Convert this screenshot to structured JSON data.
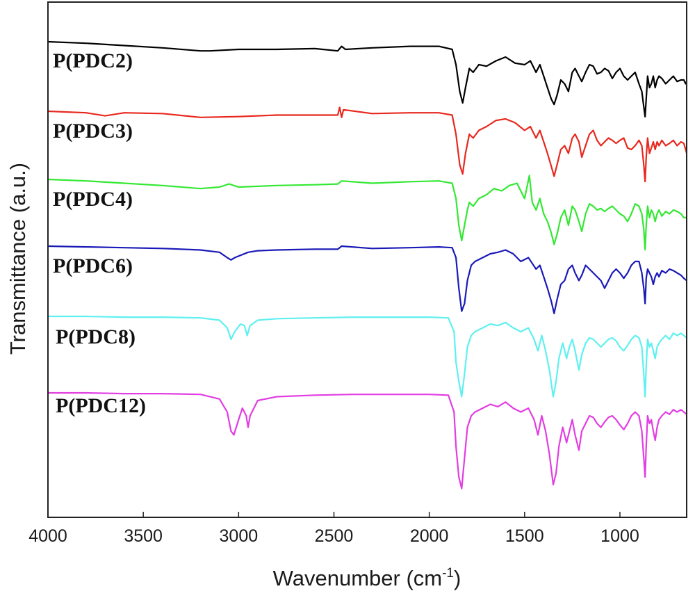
{
  "chart_data": {
    "type": "line",
    "title": "",
    "xlabel": "Wavenumber (cm",
    "xlabel_sup": "-1",
    "xlabel_end": ")",
    "ylabel": "Transmittance (a.u.)",
    "xlim": [
      4000,
      650
    ],
    "x_reversed": true,
    "x_ticks": [
      4000,
      3500,
      3000,
      2500,
      2000,
      1500,
      1000
    ],
    "grid": false,
    "series": [
      {
        "name": "P(PDC2)",
        "color": "#000000",
        "baseline": 0,
        "x": [
          4000,
          3800,
          3600,
          3400,
          3200,
          3150,
          3000,
          2800,
          2600,
          2480,
          2460,
          2440,
          2300,
          2100,
          1950,
          1880,
          1860,
          1840,
          1825,
          1810,
          1790,
          1770,
          1740,
          1700,
          1650,
          1600,
          1550,
          1500,
          1470,
          1440,
          1420,
          1400,
          1380,
          1360,
          1345,
          1330,
          1310,
          1290,
          1270,
          1250,
          1235,
          1215,
          1200,
          1180,
          1160,
          1140,
          1120,
          1100,
          1080,
          1060,
          1040,
          1020,
          1000,
          980,
          960,
          940,
          920,
          900,
          885,
          875,
          868,
          862,
          855,
          845,
          835,
          825,
          815,
          805,
          795,
          780,
          760,
          740,
          720,
          700,
          680,
          665,
          655,
          650
        ],
        "y": [
          0.0,
          -0.02,
          -0.05,
          -0.08,
          -0.12,
          -0.12,
          -0.1,
          -0.1,
          -0.09,
          -0.12,
          -0.06,
          -0.1,
          -0.08,
          -0.06,
          -0.06,
          -0.1,
          -0.3,
          -0.65,
          -0.8,
          -0.6,
          -0.35,
          -0.4,
          -0.3,
          -0.32,
          -0.25,
          -0.2,
          -0.28,
          -0.3,
          -0.25,
          -0.4,
          -0.3,
          -0.45,
          -0.6,
          -0.75,
          -0.82,
          -0.7,
          -0.5,
          -0.55,
          -0.65,
          -0.4,
          -0.35,
          -0.45,
          -0.52,
          -0.4,
          -0.3,
          -0.32,
          -0.42,
          -0.4,
          -0.35,
          -0.38,
          -0.48,
          -0.4,
          -0.35,
          -0.45,
          -0.5,
          -0.45,
          -0.4,
          -0.55,
          -0.65,
          -0.85,
          -0.98,
          -0.75,
          -0.45,
          -0.6,
          -0.55,
          -0.45,
          -0.6,
          -0.5,
          -0.45,
          -0.48,
          -0.55,
          -0.5,
          -0.45,
          -0.52,
          -0.5,
          -0.5,
          -0.55,
          -0.52
        ]
      },
      {
        "name": "P(PDC3)",
        "color": "#e8281e",
        "baseline": 0,
        "x": [
          4000,
          3800,
          3700,
          3600,
          3400,
          3200,
          3000,
          2800,
          2600,
          2480,
          2470,
          2460,
          2450,
          2300,
          2100,
          1950,
          1880,
          1860,
          1840,
          1825,
          1810,
          1790,
          1770,
          1740,
          1700,
          1650,
          1600,
          1550,
          1500,
          1470,
          1440,
          1420,
          1400,
          1380,
          1360,
          1345,
          1330,
          1310,
          1290,
          1270,
          1250,
          1235,
          1215,
          1200,
          1180,
          1160,
          1140,
          1120,
          1100,
          1080,
          1060,
          1040,
          1020,
          1000,
          980,
          960,
          940,
          920,
          900,
          885,
          875,
          868,
          862,
          855,
          845,
          835,
          825,
          815,
          805,
          795,
          780,
          760,
          740,
          720,
          700,
          680,
          665,
          655,
          650
        ],
        "y": [
          0.0,
          -0.02,
          -0.06,
          -0.02,
          -0.03,
          -0.08,
          -0.07,
          -0.05,
          -0.05,
          -0.05,
          0.05,
          -0.08,
          0.02,
          -0.03,
          -0.02,
          -0.02,
          -0.05,
          -0.3,
          -0.7,
          -0.82,
          -0.55,
          -0.3,
          -0.35,
          -0.25,
          -0.2,
          -0.12,
          -0.1,
          -0.15,
          -0.25,
          -0.2,
          -0.35,
          -0.25,
          -0.4,
          -0.55,
          -0.72,
          -0.85,
          -0.7,
          -0.5,
          -0.45,
          -0.55,
          -0.35,
          -0.3,
          -0.4,
          -0.6,
          -0.45,
          -0.3,
          -0.25,
          -0.38,
          -0.45,
          -0.4,
          -0.35,
          -0.38,
          -0.42,
          -0.38,
          -0.35,
          -0.48,
          -0.5,
          -0.45,
          -0.38,
          -0.45,
          -0.7,
          -0.92,
          -0.6,
          -0.35,
          -0.55,
          -0.48,
          -0.4,
          -0.5,
          -0.4,
          -0.45,
          -0.38,
          -0.45,
          -0.42,
          -0.38,
          -0.45,
          -0.4,
          -0.42,
          -0.5,
          -0.55
        ]
      },
      {
        "name": "P(PDC4)",
        "color": "#33e833",
        "baseline": 0,
        "x": [
          4000,
          3800,
          3600,
          3400,
          3200,
          3100,
          3050,
          3000,
          2800,
          2600,
          2480,
          2460,
          2300,
          2100,
          1950,
          1880,
          1860,
          1845,
          1830,
          1815,
          1800,
          1790,
          1770,
          1740,
          1700,
          1660,
          1620,
          1580,
          1540,
          1500,
          1475,
          1460,
          1440,
          1420,
          1400,
          1380,
          1360,
          1345,
          1330,
          1310,
          1290,
          1270,
          1250,
          1235,
          1215,
          1200,
          1180,
          1160,
          1140,
          1120,
          1100,
          1080,
          1060,
          1040,
          1020,
          1000,
          980,
          960,
          940,
          920,
          900,
          885,
          875,
          868,
          862,
          855,
          845,
          835,
          825,
          815,
          805,
          795,
          780,
          760,
          740,
          720,
          700,
          680,
          665,
          650
        ],
        "y": [
          0.0,
          -0.02,
          -0.05,
          -0.08,
          -0.12,
          -0.1,
          -0.06,
          -0.1,
          -0.08,
          -0.07,
          -0.06,
          -0.02,
          -0.05,
          -0.03,
          -0.02,
          -0.05,
          -0.25,
          -0.6,
          -0.8,
          -0.6,
          -0.4,
          -0.3,
          -0.35,
          -0.25,
          -0.2,
          -0.12,
          -0.15,
          -0.08,
          -0.05,
          -0.25,
          0.05,
          -0.3,
          -0.4,
          -0.25,
          -0.45,
          -0.55,
          -0.7,
          -0.85,
          -0.72,
          -0.5,
          -0.4,
          -0.6,
          -0.35,
          -0.4,
          -0.55,
          -0.68,
          -0.45,
          -0.32,
          -0.35,
          -0.4,
          -0.38,
          -0.42,
          -0.38,
          -0.35,
          -0.4,
          -0.45,
          -0.48,
          -0.55,
          -0.45,
          -0.32,
          -0.35,
          -0.45,
          -0.65,
          -0.92,
          -0.6,
          -0.35,
          -0.5,
          -0.4,
          -0.45,
          -0.55,
          -0.45,
          -0.4,
          -0.48,
          -0.42,
          -0.45,
          -0.4,
          -0.42,
          -0.45,
          -0.5,
          -0.5
        ]
      },
      {
        "name": "P(PDC6)",
        "color": "#1a1ab8",
        "baseline": 0,
        "x": [
          4000,
          3800,
          3600,
          3400,
          3200,
          3100,
          3060,
          3040,
          3020,
          2950,
          2900,
          2800,
          2600,
          2480,
          2460,
          2300,
          2100,
          1950,
          1880,
          1860,
          1845,
          1830,
          1815,
          1800,
          1780,
          1760,
          1720,
          1680,
          1640,
          1600,
          1560,
          1520,
          1480,
          1440,
          1420,
          1400,
          1380,
          1360,
          1345,
          1330,
          1310,
          1290,
          1270,
          1250,
          1235,
          1215,
          1200,
          1180,
          1160,
          1140,
          1120,
          1100,
          1080,
          1060,
          1040,
          1020,
          1000,
          980,
          960,
          940,
          920,
          900,
          885,
          875,
          868,
          862,
          855,
          845,
          835,
          825,
          815,
          805,
          795,
          780,
          760,
          740,
          720,
          700,
          680,
          665,
          650
        ],
        "y": [
          0.0,
          -0.01,
          -0.02,
          -0.03,
          -0.05,
          -0.08,
          -0.15,
          -0.18,
          -0.15,
          -0.08,
          -0.06,
          -0.05,
          -0.04,
          -0.04,
          0.0,
          -0.03,
          -0.02,
          -0.01,
          -0.02,
          -0.15,
          -0.55,
          -0.85,
          -0.75,
          -0.45,
          -0.25,
          -0.2,
          -0.15,
          -0.1,
          -0.08,
          -0.05,
          -0.1,
          -0.2,
          -0.15,
          -0.3,
          -0.25,
          -0.4,
          -0.55,
          -0.72,
          -0.88,
          -0.7,
          -0.5,
          -0.45,
          -0.3,
          -0.25,
          -0.35,
          -0.45,
          -0.38,
          -0.25,
          -0.3,
          -0.35,
          -0.4,
          -0.45,
          -0.55,
          -0.45,
          -0.35,
          -0.3,
          -0.35,
          -0.42,
          -0.35,
          -0.25,
          -0.2,
          -0.2,
          -0.35,
          -0.55,
          -0.75,
          -0.42,
          -0.3,
          -0.35,
          -0.4,
          -0.5,
          -0.4,
          -0.35,
          -0.4,
          -0.32,
          -0.35,
          -0.3,
          -0.32,
          -0.35,
          -0.38,
          -0.42,
          -0.45
        ]
      },
      {
        "name": "P(PDC8)",
        "color": "#5ff0f0",
        "baseline": 0,
        "x": [
          4000,
          3800,
          3600,
          3400,
          3200,
          3100,
          3060,
          3040,
          3020,
          2990,
          2970,
          2955,
          2940,
          2900,
          2800,
          2600,
          2400,
          2200,
          2000,
          1900,
          1870,
          1860,
          1845,
          1830,
          1815,
          1800,
          1780,
          1760,
          1720,
          1680,
          1640,
          1600,
          1560,
          1520,
          1480,
          1450,
          1430,
          1410,
          1390,
          1370,
          1350,
          1335,
          1320,
          1300,
          1280,
          1265,
          1250,
          1235,
          1215,
          1200,
          1180,
          1160,
          1140,
          1120,
          1100,
          1080,
          1060,
          1040,
          1020,
          1000,
          980,
          960,
          940,
          920,
          900,
          885,
          875,
          868,
          862,
          855,
          845,
          835,
          825,
          815,
          805,
          795,
          780,
          760,
          740,
          720,
          700,
          680,
          665,
          650
        ],
        "y": [
          0.0,
          0.0,
          -0.01,
          -0.01,
          -0.02,
          -0.05,
          -0.15,
          -0.3,
          -0.2,
          -0.1,
          -0.12,
          -0.25,
          -0.12,
          -0.05,
          -0.03,
          -0.02,
          -0.01,
          -0.01,
          -0.01,
          -0.02,
          -0.2,
          -0.6,
          -0.85,
          -1.05,
          -0.75,
          -0.4,
          -0.25,
          -0.2,
          -0.15,
          -0.1,
          -0.12,
          -0.08,
          -0.15,
          -0.2,
          -0.15,
          -0.3,
          -0.45,
          -0.25,
          -0.45,
          -0.7,
          -1.05,
          -0.85,
          -0.55,
          -0.35,
          -0.55,
          -0.4,
          -0.3,
          -0.45,
          -0.7,
          -0.5,
          -0.35,
          -0.28,
          -0.3,
          -0.35,
          -0.4,
          -0.35,
          -0.3,
          -0.28,
          -0.32,
          -0.4,
          -0.45,
          -0.38,
          -0.3,
          -0.25,
          -0.28,
          -0.4,
          -0.75,
          -1.05,
          -0.65,
          -0.3,
          -0.4,
          -0.35,
          -0.45,
          -0.55,
          -0.4,
          -0.35,
          -0.3,
          -0.25,
          -0.3,
          -0.22,
          -0.25,
          -0.22,
          -0.25,
          -0.28
        ]
      },
      {
        "name": "P(PDC12)",
        "color": "#e23de2",
        "baseline": 0,
        "x": [
          4000,
          3800,
          3600,
          3400,
          3200,
          3100,
          3060,
          3040,
          3025,
          3000,
          2980,
          2960,
          2950,
          2940,
          2900,
          2800,
          2600,
          2400,
          2200,
          2000,
          1900,
          1870,
          1860,
          1845,
          1830,
          1815,
          1800,
          1780,
          1760,
          1720,
          1680,
          1640,
          1600,
          1560,
          1520,
          1480,
          1450,
          1430,
          1410,
          1390,
          1370,
          1350,
          1335,
          1320,
          1300,
          1280,
          1265,
          1250,
          1235,
          1215,
          1200,
          1180,
          1160,
          1140,
          1120,
          1100,
          1080,
          1060,
          1040,
          1020,
          1000,
          980,
          960,
          940,
          920,
          900,
          885,
          875,
          868,
          862,
          855,
          845,
          835,
          825,
          815,
          805,
          795,
          780,
          760,
          740,
          720,
          700,
          680,
          665,
          650
        ],
        "y": [
          0.0,
          0.0,
          -0.01,
          -0.01,
          -0.02,
          -0.08,
          -0.25,
          -0.5,
          -0.55,
          -0.35,
          -0.2,
          -0.3,
          -0.45,
          -0.3,
          -0.1,
          -0.05,
          -0.03,
          -0.02,
          -0.02,
          -0.02,
          -0.03,
          -0.25,
          -0.7,
          -1.1,
          -1.25,
          -0.85,
          -0.45,
          -0.3,
          -0.25,
          -0.2,
          -0.15,
          -0.18,
          -0.12,
          -0.2,
          -0.25,
          -0.2,
          -0.35,
          -0.55,
          -0.3,
          -0.5,
          -0.8,
          -1.2,
          -1.05,
          -0.7,
          -0.45,
          -0.65,
          -0.5,
          -0.35,
          -0.55,
          -0.75,
          -0.5,
          -0.4,
          -0.3,
          -0.32,
          -0.4,
          -0.45,
          -0.38,
          -0.32,
          -0.3,
          -0.35,
          -0.42,
          -0.48,
          -0.4,
          -0.3,
          -0.25,
          -0.3,
          -0.5,
          -0.85,
          -1.1,
          -0.7,
          -0.3,
          -0.4,
          -0.35,
          -0.5,
          -0.62,
          -0.45,
          -0.35,
          -0.3,
          -0.25,
          -0.28,
          -0.22,
          -0.25,
          -0.22,
          -0.25,
          -0.28
        ]
      }
    ]
  }
}
